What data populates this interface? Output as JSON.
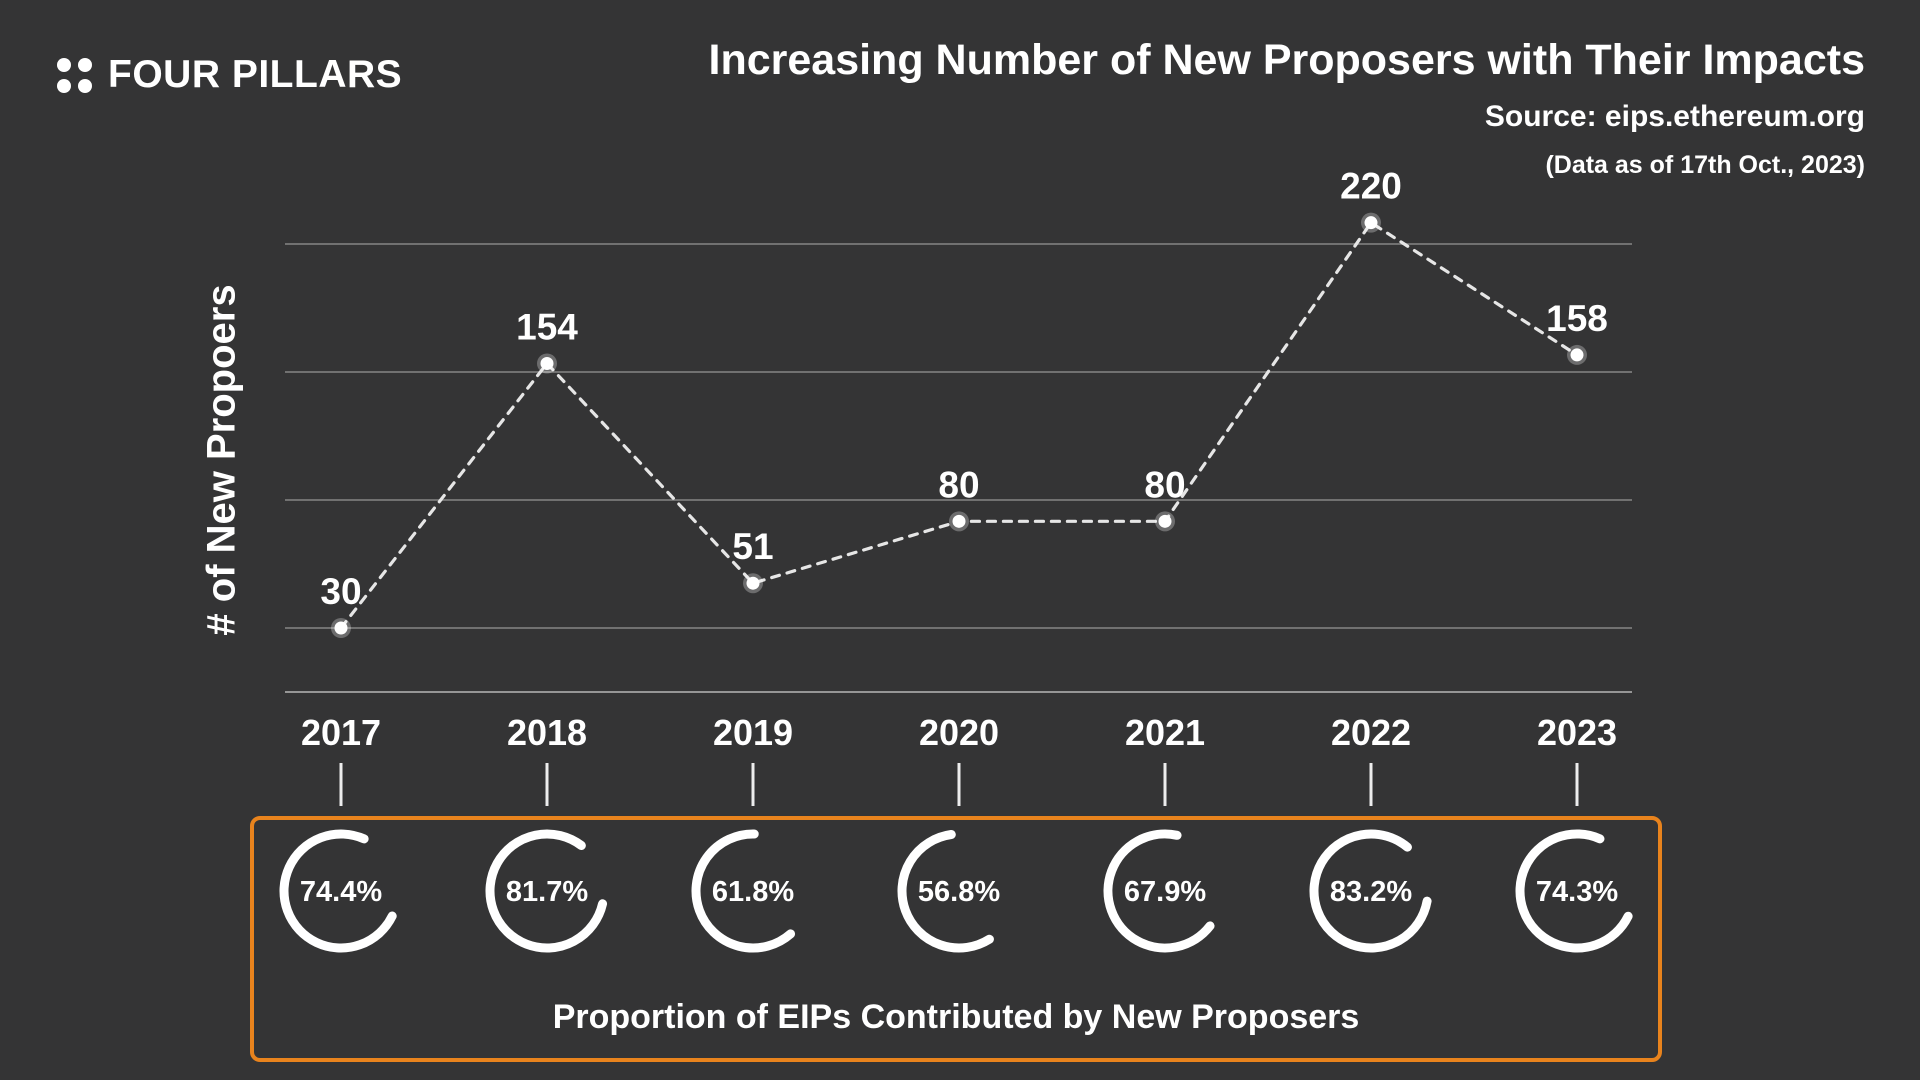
{
  "header": {
    "logo_text": "FOUR PILLARS",
    "title": "Increasing Number of New Proposers with Their Impacts",
    "source": "Source: eips.ethereum.org",
    "data_as_of": "(Data as of 17th Oct., 2023)"
  },
  "colors": {
    "background": "#343435",
    "accent_orange": "#E8831D",
    "text": "#FFFFFF",
    "gridline": "#717171",
    "axis_line": "#969696",
    "trend_line": "#E6E6E6"
  },
  "chart_data": [
    {
      "type": "line",
      "ylabel": "# of New Propoers",
      "categories": [
        "2017",
        "2018",
        "2019",
        "2020",
        "2021",
        "2022",
        "2023"
      ],
      "values": [
        30,
        154,
        51,
        80,
        80,
        220,
        158
      ],
      "point_labels": [
        "30",
        "154",
        "51",
        "80",
        "80",
        "220",
        "158"
      ],
      "line_style": "dashed",
      "marker": "circle",
      "grid": "horizontal",
      "gridline_values": [
        30,
        90,
        150,
        210
      ],
      "ylim": [
        0,
        235
      ],
      "legend": "none"
    },
    {
      "type": "donut-gauges",
      "title": "Proportion of EIPs Contributed by New Proposers",
      "categories": [
        "2017",
        "2018",
        "2019",
        "2020",
        "2021",
        "2022",
        "2023"
      ],
      "values_pct": [
        74.4,
        81.7,
        61.8,
        56.8,
        67.9,
        83.2,
        74.3
      ],
      "unit": "%"
    }
  ]
}
